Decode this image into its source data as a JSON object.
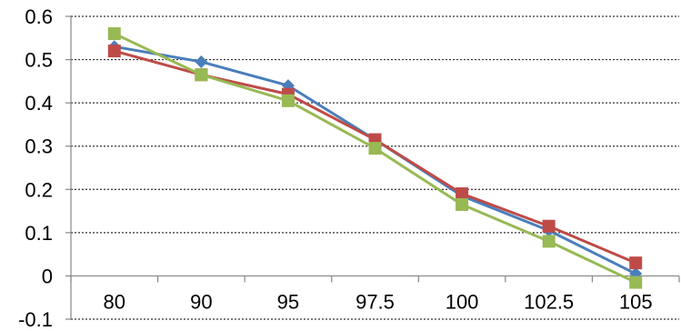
{
  "chart_data": {
    "type": "line",
    "categories": [
      "80",
      "90",
      "95",
      "97.5",
      "100",
      "102.5",
      "105"
    ],
    "series": [
      {
        "color": "#4a7ebb",
        "marker": "diamond",
        "values": [
          0.53,
          0.495,
          0.44,
          0.315,
          0.185,
          0.105,
          0.005
        ]
      },
      {
        "color": "#be4b48",
        "marker": "square",
        "values": [
          0.52,
          0.465,
          0.42,
          0.315,
          0.19,
          0.115,
          0.03
        ]
      },
      {
        "color": "#98b954",
        "marker": "square",
        "values": [
          0.56,
          0.465,
          0.405,
          0.295,
          0.165,
          0.08,
          -0.015
        ]
      }
    ],
    "ylim": [
      -0.1,
      0.6
    ],
    "yticks": [
      "-0.1",
      "0",
      "0.1",
      "0.2",
      "0.3",
      "0.4",
      "0.5",
      "0.6"
    ],
    "grid": true,
    "legend": "none",
    "title": "",
    "xlabel": "",
    "ylabel": ""
  }
}
